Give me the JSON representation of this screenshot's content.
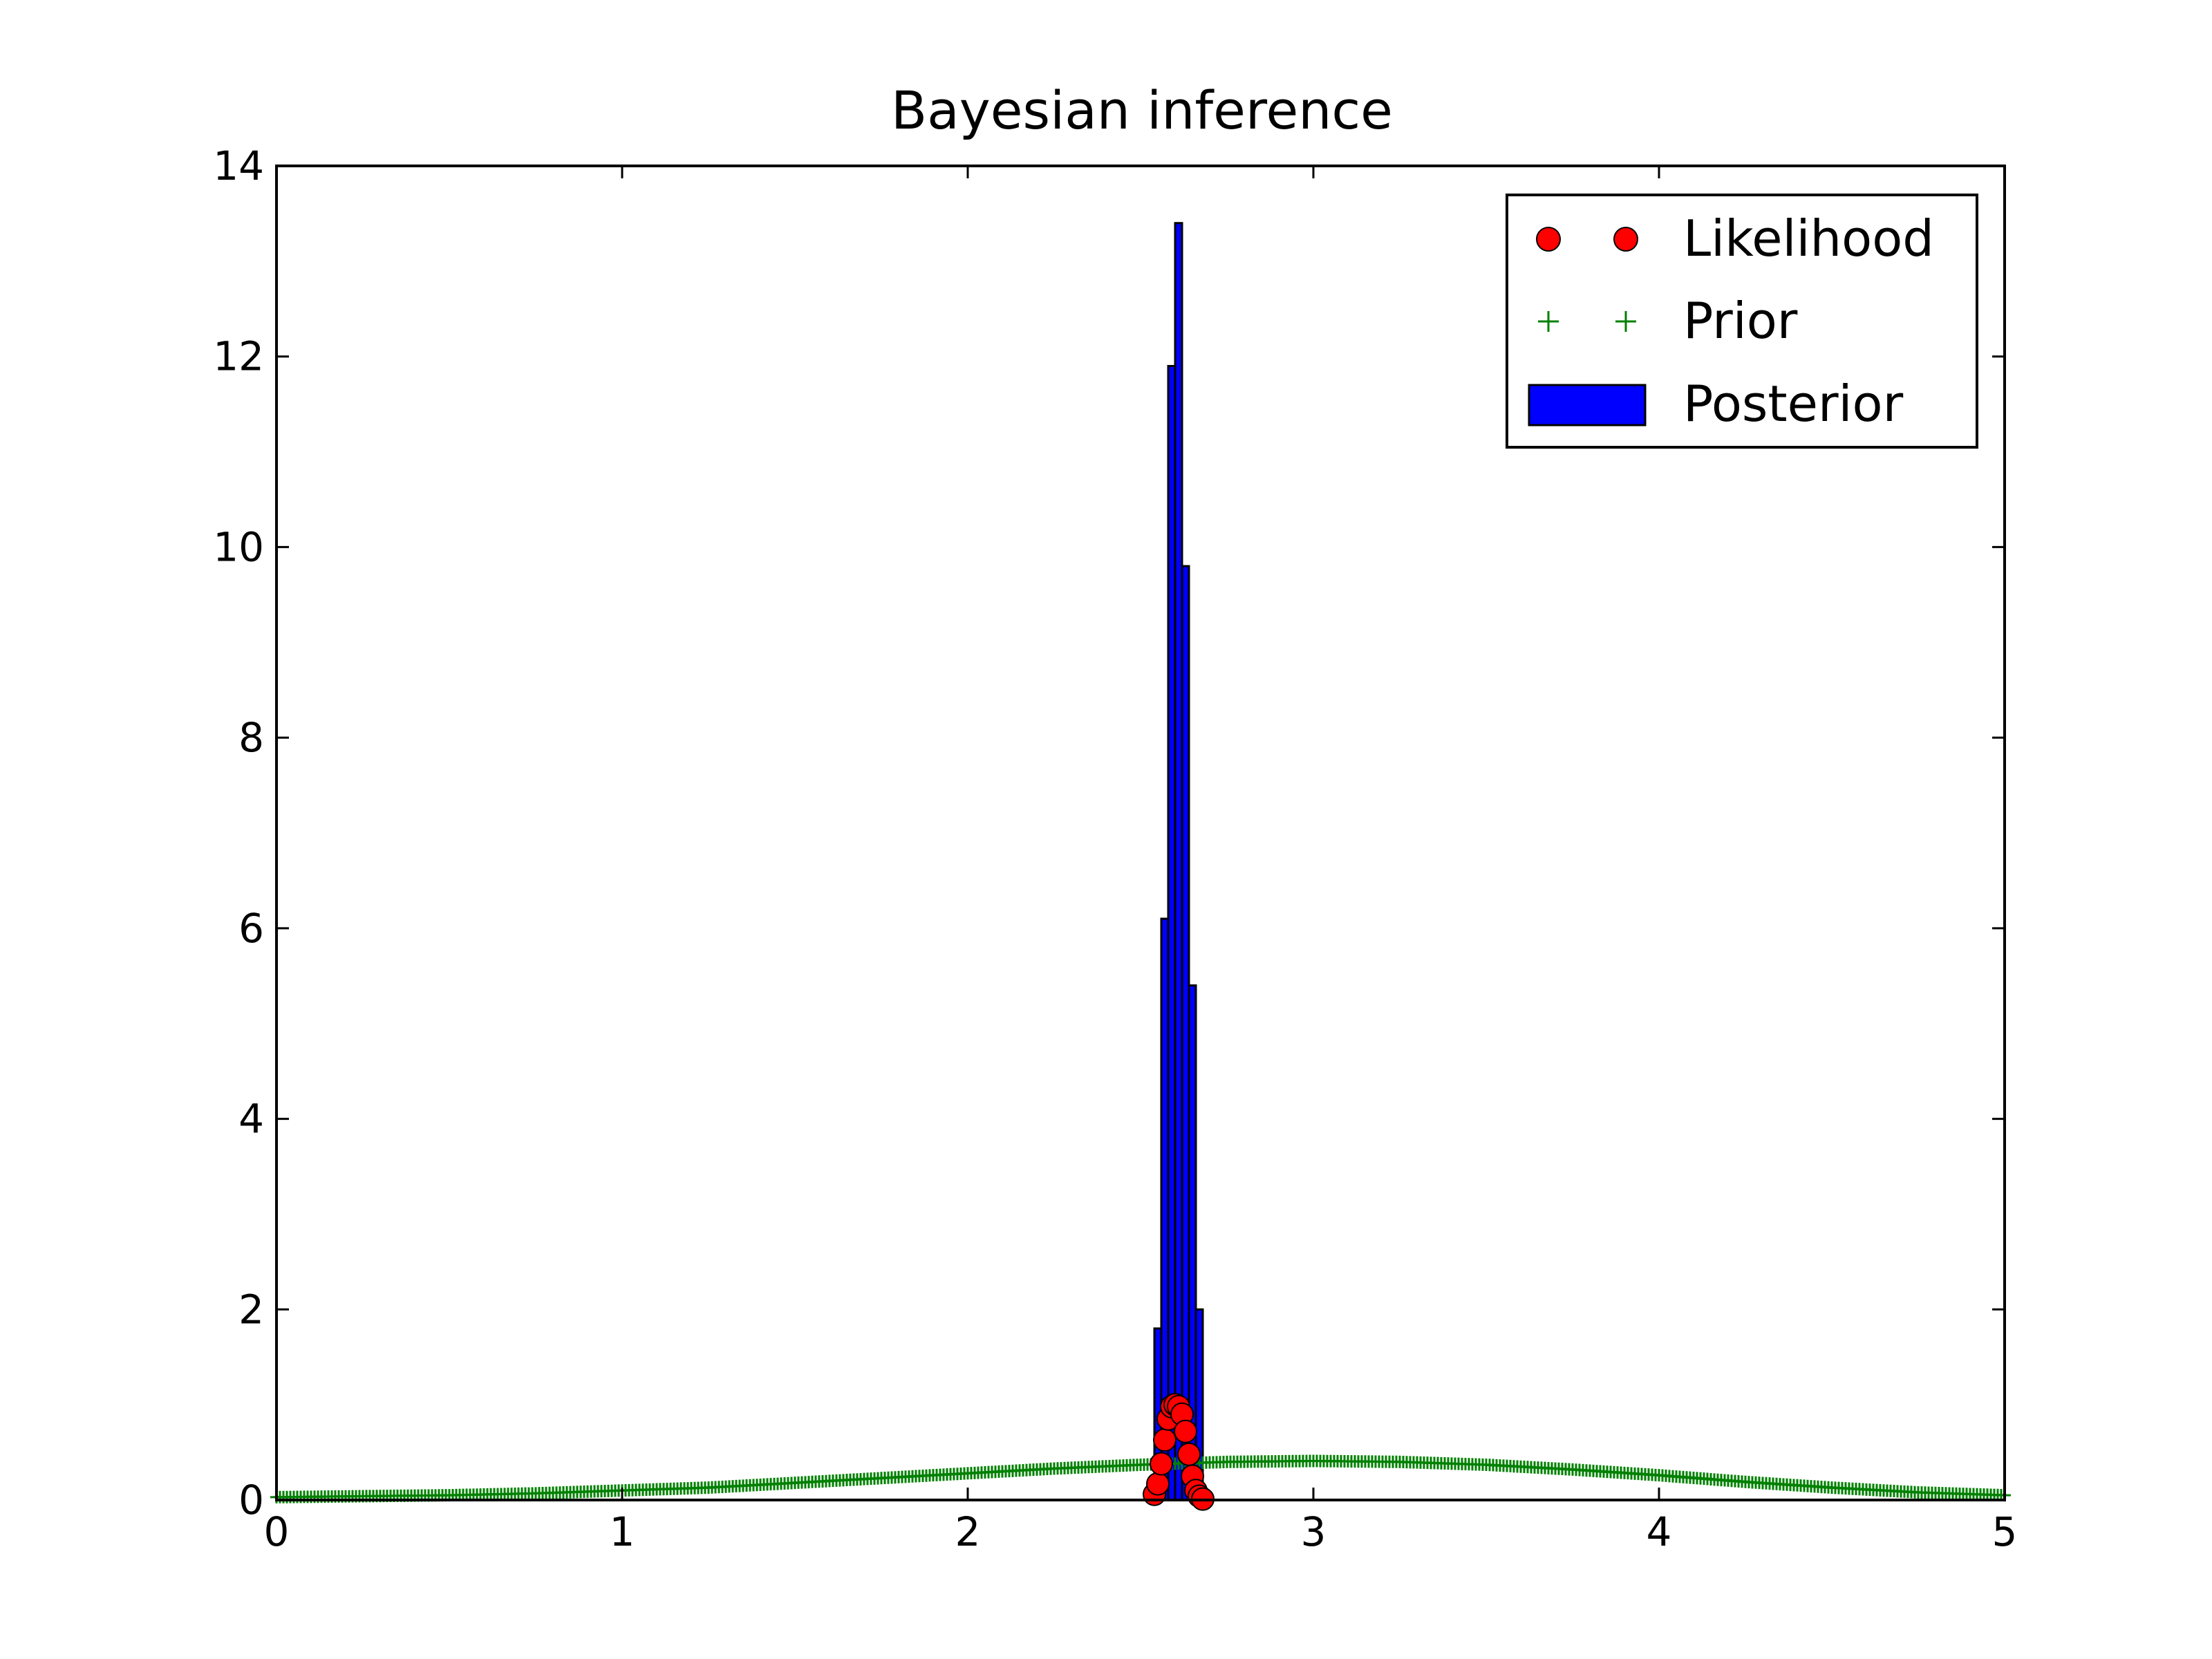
{
  "chart_data": {
    "title": "Bayesian inference",
    "xlim": [
      0,
      5
    ],
    "ylim": [
      0,
      14
    ],
    "x_ticks": [
      0,
      1,
      2,
      3,
      4,
      5
    ],
    "x_tick_labels": [
      "0",
      "1",
      "2",
      "3",
      "4",
      "5"
    ],
    "y_ticks": [
      0,
      2,
      4,
      6,
      8,
      10,
      12,
      14
    ],
    "y_tick_labels": [
      "0",
      "2",
      "4",
      "6",
      "8",
      "10",
      "12",
      "14"
    ],
    "grid": false,
    "legend_position": "top-right",
    "series": [
      {
        "name": "Likelihood",
        "type": "scatter",
        "marker": "circle",
        "color": "#ff0000",
        "edge_color": "#000000",
        "x": [
          2.54,
          2.55,
          2.56,
          2.57,
          2.58,
          2.59,
          2.6,
          2.61,
          2.62,
          2.63,
          2.64,
          2.65,
          2.66,
          2.67,
          2.68
        ],
        "y": [
          0.06,
          0.17,
          0.38,
          0.63,
          0.85,
          0.98,
          1.0,
          0.98,
          0.9,
          0.72,
          0.48,
          0.25,
          0.1,
          0.04,
          0.01
        ]
      },
      {
        "name": "Prior",
        "type": "scatter",
        "marker": "plus",
        "color": "#008000",
        "x": [
          0,
          0.25,
          0.5,
          0.75,
          1.0,
          1.25,
          1.5,
          1.75,
          2.0,
          2.25,
          2.5,
          2.75,
          3.0,
          3.25,
          3.5,
          3.75,
          4.0,
          4.25,
          4.5,
          4.75,
          5.0
        ],
        "y": [
          0.03,
          0.04,
          0.05,
          0.07,
          0.1,
          0.13,
          0.18,
          0.23,
          0.28,
          0.33,
          0.37,
          0.4,
          0.41,
          0.4,
          0.37,
          0.32,
          0.26,
          0.19,
          0.13,
          0.08,
          0.05
        ]
      },
      {
        "name": "Posterior",
        "type": "histogram",
        "color": "#0000ff",
        "edge_color": "#000000",
        "bin_width": 0.02,
        "bins": [
          {
            "x": 2.55,
            "y": 1.8
          },
          {
            "x": 2.57,
            "y": 6.1
          },
          {
            "x": 2.59,
            "y": 11.9
          },
          {
            "x": 2.61,
            "y": 13.4
          },
          {
            "x": 2.63,
            "y": 9.8
          },
          {
            "x": 2.65,
            "y": 5.4
          },
          {
            "x": 2.67,
            "y": 2.0
          }
        ]
      }
    ]
  }
}
